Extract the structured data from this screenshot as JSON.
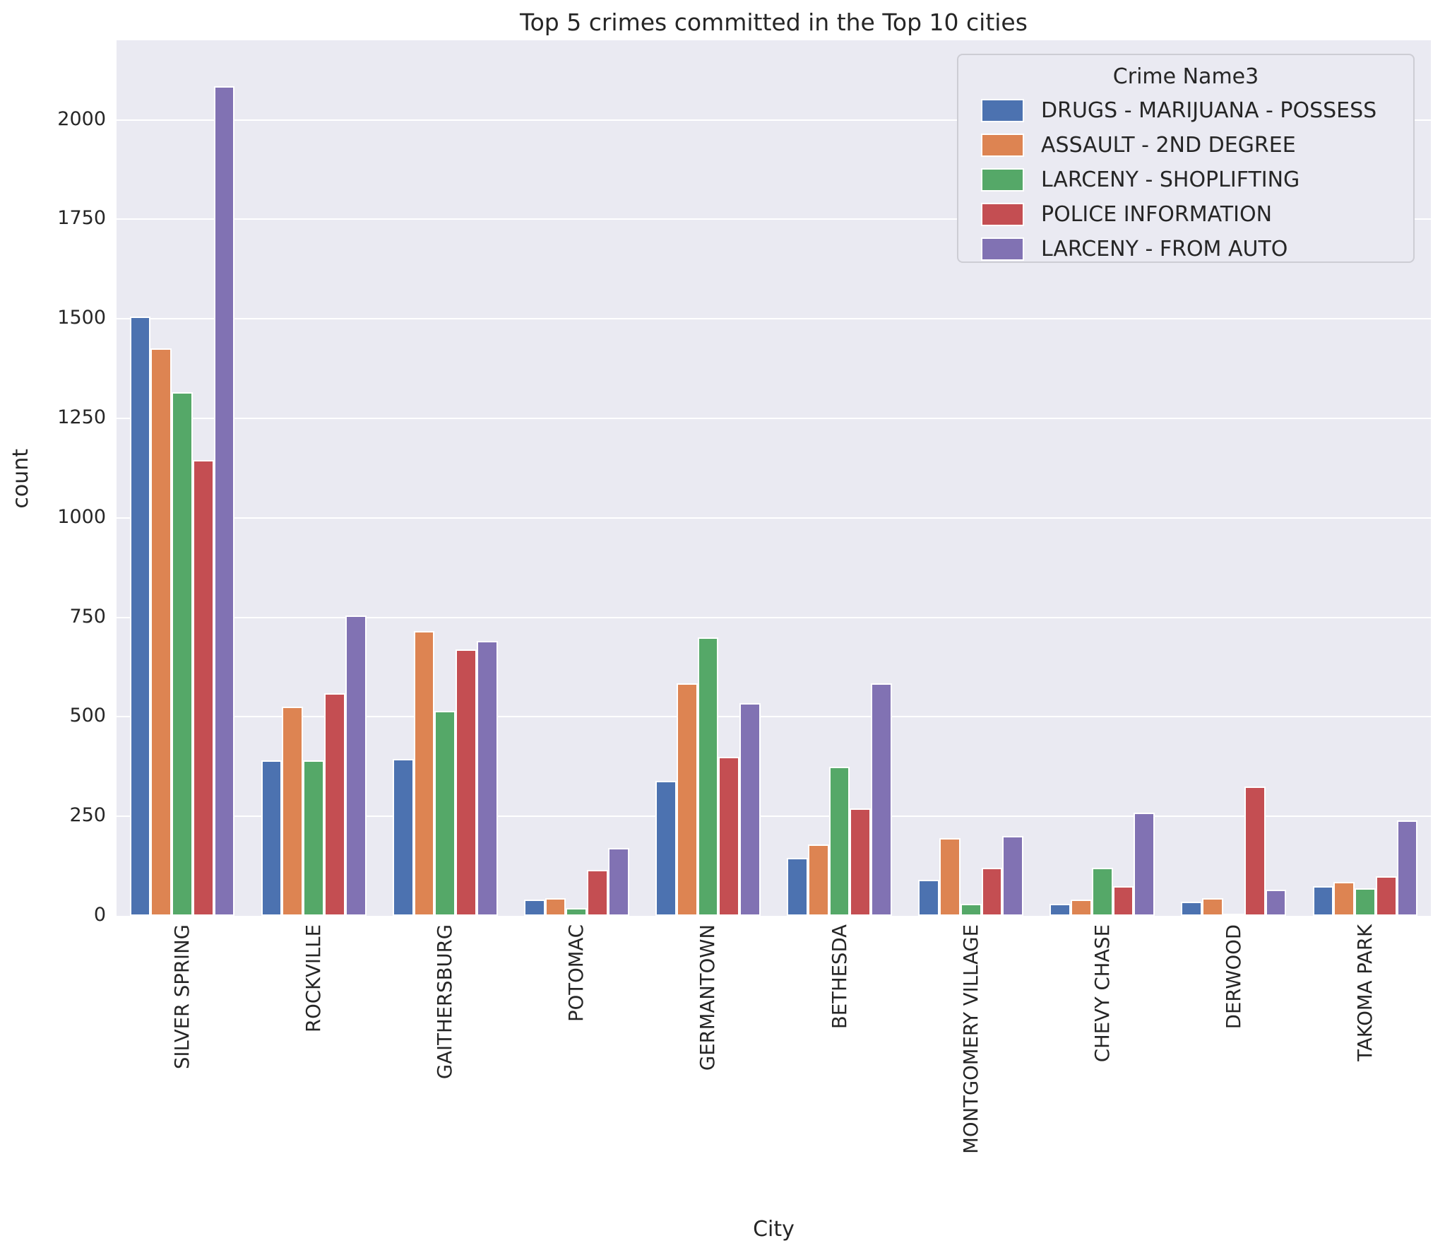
{
  "chart_data": {
    "type": "bar",
    "title": "Top 5 crimes committed in the Top 10 cities",
    "xlabel": "City",
    "ylabel": "count",
    "ylim": [
      0,
      2200
    ],
    "yticks": [
      0,
      250,
      500,
      750,
      1000,
      1250,
      1500,
      1750,
      2000
    ],
    "grid": true,
    "plot_background": "#eaeaf2",
    "grid_color": "#ffffff",
    "text_color": "#262626",
    "legend_title": "Crime Name3",
    "legend_position": "upper right",
    "categories": [
      "SILVER SPRING",
      "ROCKVILLE",
      "GAITHERSBURG",
      "POTOMAC",
      "GERMANTOWN",
      "BETHESDA",
      "MONTGOMERY VILLAGE",
      "CHEVY CHASE",
      "DERWOOD",
      "TAKOMA PARK"
    ],
    "series": [
      {
        "name": "DRUGS - MARIJUANA - POSSESS",
        "color": "#4c72b0",
        "values": [
          1505,
          390,
          395,
          40,
          340,
          145,
          90,
          30,
          35,
          75
        ]
      },
      {
        "name": "ASSAULT - 2ND DEGREE",
        "color": "#dd8452",
        "values": [
          1425,
          525,
          715,
          45,
          585,
          180,
          195,
          40,
          45,
          85
        ]
      },
      {
        "name": "LARCENY - SHOPLIFTING",
        "color": "#55a868",
        "values": [
          1315,
          390,
          515,
          20,
          700,
          375,
          30,
          120,
          5,
          70
        ]
      },
      {
        "name": "POLICE INFORMATION",
        "color": "#c44e52",
        "values": [
          1145,
          560,
          670,
          115,
          400,
          270,
          120,
          75,
          325,
          100
        ]
      },
      {
        "name": "LARCENY - FROM AUTO",
        "color": "#8172b3",
        "values": [
          2085,
          755,
          690,
          170,
          535,
          585,
          200,
          260,
          65,
          240
        ]
      }
    ]
  }
}
